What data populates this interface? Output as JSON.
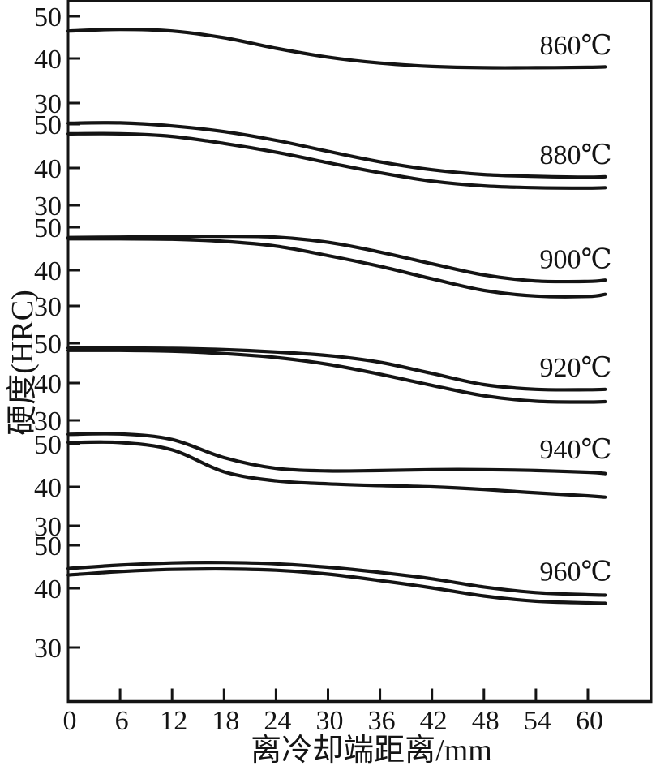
{
  "figure": {
    "background": "#ffffff",
    "ink_color": "#141414",
    "y_axis_title": "硬度(HRC)",
    "x_axis_title": "离冷却端距离/mm"
  },
  "chart_data": {
    "type": "line",
    "xlabel": "离冷却端距离/mm",
    "ylabel": "硬度(HRC)",
    "grid": false,
    "legend_position": "curves labeled inline by temperature",
    "x_ticks": [
      0,
      6,
      12,
      18,
      24,
      30,
      36,
      42,
      48,
      54,
      60
    ],
    "xlim": [
      0,
      63
    ],
    "panel_y_ticks": [
      50,
      40,
      30
    ],
    "x": [
      0,
      6,
      12,
      18,
      24,
      30,
      36,
      42,
      48,
      54,
      60,
      62
    ],
    "panels": [
      {
        "label": "860℃",
        "y_ticks": [
          50,
          40,
          30
        ],
        "curves": [
          [
            46.5,
            46.9,
            46.5,
            44.9,
            42.4,
            40.3,
            38.9,
            38.1,
            37.8,
            37.8,
            37.9,
            38.0
          ]
        ]
      },
      {
        "label": "880℃",
        "y_ticks": [
          50,
          40,
          30
        ],
        "curves": [
          [
            50.2,
            50.3,
            49.6,
            48.3,
            46.3,
            43.8,
            41.4,
            39.6,
            38.5,
            38.1,
            37.9,
            38.0
          ],
          [
            47.8,
            47.8,
            47.2,
            45.6,
            43.6,
            41.2,
            38.9,
            37.0,
            35.9,
            35.5,
            35.4,
            35.5
          ]
        ]
      },
      {
        "label": "900℃",
        "y_ticks": [
          50,
          40,
          30
        ],
        "curves": [
          [
            47.6,
            47.7,
            47.8,
            47.9,
            47.7,
            46.5,
            44.2,
            41.5,
            38.9,
            37.5,
            37.4,
            37.7
          ],
          [
            47.3,
            47.3,
            47.2,
            46.7,
            45.6,
            43.4,
            40.9,
            38.0,
            35.3,
            34.0,
            33.9,
            34.4
          ]
        ]
      },
      {
        "label": "920℃",
        "y_ticks": [
          50,
          40,
          30
        ],
        "curves": [
          [
            48.8,
            48.8,
            48.7,
            48.4,
            47.8,
            46.9,
            45.2,
            42.4,
            39.6,
            38.4,
            38.3,
            38.4
          ],
          [
            48.2,
            48.2,
            48.0,
            47.4,
            46.4,
            44.7,
            42.2,
            39.4,
            36.8,
            35.4,
            35.2,
            35.3
          ]
        ]
      },
      {
        "label": "940℃",
        "y_ticks": [
          50,
          40,
          30
        ],
        "curves": [
          [
            52.2,
            52.3,
            51.0,
            46.8,
            44.3,
            43.7,
            43.8,
            44.0,
            44.0,
            43.8,
            43.4,
            43.1
          ],
          [
            50.3,
            50.3,
            48.6,
            43.5,
            41.4,
            40.7,
            40.3,
            40.0,
            39.4,
            38.6,
            37.9,
            37.6
          ]
        ]
      },
      {
        "label": "960℃",
        "y_ticks": [
          50,
          40,
          30
        ],
        "curves": [
          [
            44.6,
            45.4,
            45.9,
            46.0,
            45.7,
            44.9,
            43.7,
            42.2,
            40.3,
            39.0,
            38.5,
            38.4
          ],
          [
            43.1,
            43.9,
            44.4,
            44.5,
            44.2,
            43.3,
            41.8,
            40.1,
            38.2,
            37.0,
            36.6,
            36.5
          ]
        ]
      }
    ]
  }
}
